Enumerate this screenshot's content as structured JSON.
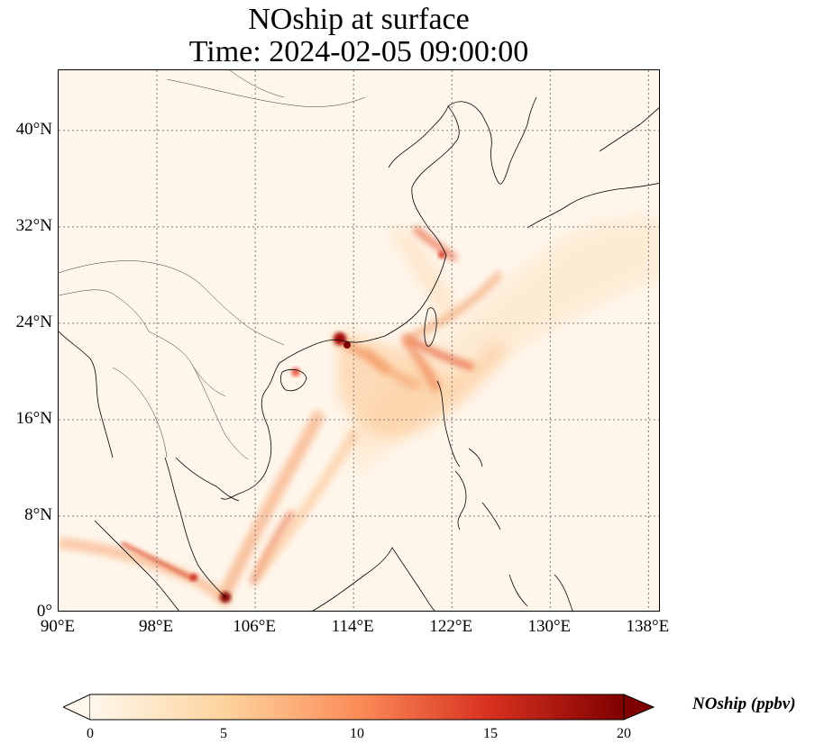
{
  "title": {
    "line1": "NOship at surface",
    "line2": "Time: 2024-02-05 09:00:00"
  },
  "map": {
    "lon_range": [
      90,
      139
    ],
    "lat_range": [
      0,
      45
    ],
    "grid": "dotted",
    "lon_ticks": [
      {
        "value": 90,
        "label": "90°E"
      },
      {
        "value": 98,
        "label": "98°E"
      },
      {
        "value": 106,
        "label": "106°E"
      },
      {
        "value": 114,
        "label": "114°E"
      },
      {
        "value": 122,
        "label": "122°E"
      },
      {
        "value": 130,
        "label": "130°E"
      },
      {
        "value": 138,
        "label": "138°E"
      }
    ],
    "lat_ticks": [
      {
        "value": 0,
        "label": "0°"
      },
      {
        "value": 8,
        "label": "8°N"
      },
      {
        "value": 16,
        "label": "16°N"
      },
      {
        "value": 24,
        "label": "24°N"
      },
      {
        "value": 32,
        "label": "32°N"
      },
      {
        "value": 40,
        "label": "40°N"
      }
    ]
  },
  "colorbar": {
    "label": "NOship (ppbv)",
    "min": 0,
    "max": 20,
    "extend": "both",
    "colormap": "OrRd",
    "colors": [
      "#fff7ec",
      "#fdd49e",
      "#fc8d59",
      "#d7301f",
      "#7f0000"
    ],
    "ticks": [
      {
        "value": 0,
        "label": "0"
      },
      {
        "value": 5,
        "label": "5"
      },
      {
        "value": 10,
        "label": "10"
      },
      {
        "value": 15,
        "label": "15"
      },
      {
        "value": 20,
        "label": "20"
      }
    ]
  }
}
